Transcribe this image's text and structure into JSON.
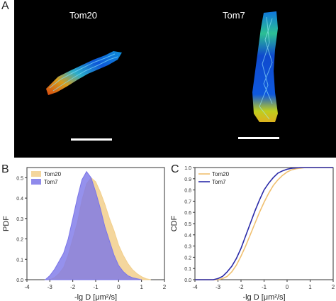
{
  "figure": {
    "panel_a_label": "A",
    "panel_b_label": "B",
    "panel_c_label": "C",
    "microscopy": {
      "left_title": "Tom20",
      "right_title": "Tom7"
    }
  },
  "chart_data": [
    {
      "type": "area",
      "xlabel": "-lg D [μm²/s]",
      "ylabel": "PDF",
      "xlim": [
        -4,
        2
      ],
      "ylim": [
        0,
        0.55
      ],
      "xticks": [
        -4,
        -3,
        -2,
        -1,
        0,
        1,
        2
      ],
      "yticks": [
        0.0,
        0.1,
        0.2,
        0.3,
        0.4,
        0.5
      ],
      "ytick_labels": [
        "0.0",
        "0.1",
        "0.2",
        "0.3",
        "0.4",
        "0.5"
      ],
      "legend": "top-left",
      "series": [
        {
          "name": "Tom20",
          "color": "#f2cf8c",
          "x": [
            -3.0,
            -2.8,
            -2.6,
            -2.4,
            -2.2,
            -2.0,
            -1.8,
            -1.6,
            -1.4,
            -1.2,
            -1.0,
            -0.8,
            -0.6,
            -0.4,
            -0.2,
            0.0,
            0.2,
            0.4,
            0.6,
            0.8,
            1.0,
            1.2,
            1.4
          ],
          "y": [
            0.0,
            0.01,
            0.03,
            0.06,
            0.12,
            0.2,
            0.28,
            0.39,
            0.47,
            0.5,
            0.48,
            0.43,
            0.37,
            0.3,
            0.24,
            0.17,
            0.12,
            0.08,
            0.05,
            0.03,
            0.015,
            0.005,
            0.0
          ]
        },
        {
          "name": "Tom7",
          "color": "#7b75e8",
          "x": [
            -3.2,
            -3.0,
            -2.8,
            -2.6,
            -2.4,
            -2.2,
            -2.0,
            -1.8,
            -1.6,
            -1.4,
            -1.2,
            -1.0,
            -0.8,
            -0.6,
            -0.4,
            -0.2,
            0.0,
            0.2,
            0.4,
            0.6,
            0.8,
            1.0
          ],
          "y": [
            0.0,
            0.02,
            0.05,
            0.09,
            0.13,
            0.2,
            0.3,
            0.4,
            0.49,
            0.53,
            0.5,
            0.43,
            0.35,
            0.26,
            0.19,
            0.12,
            0.07,
            0.04,
            0.02,
            0.01,
            0.005,
            0.0
          ]
        }
      ]
    },
    {
      "type": "line",
      "xlabel": "-lg D [μm²/s]",
      "ylabel": "CDF",
      "xlim": [
        -4,
        2
      ],
      "ylim": [
        0,
        1.0
      ],
      "xticks": [
        -4,
        -3,
        -2,
        -1,
        0,
        1,
        2
      ],
      "yticks": [
        0.0,
        0.1,
        0.2,
        0.3,
        0.4,
        0.5,
        0.6,
        0.7,
        0.8,
        0.9,
        1.0
      ],
      "ytick_labels": [
        "0.0",
        "0.1",
        "0.2",
        "0.3",
        "0.4",
        "0.5",
        "0.6",
        "0.7",
        "0.8",
        "0.9",
        "1.0"
      ],
      "legend": "top-left",
      "series": [
        {
          "name": "Tom20",
          "color": "#f0c070",
          "x": [
            -4.0,
            -3.0,
            -2.8,
            -2.6,
            -2.4,
            -2.2,
            -2.0,
            -1.8,
            -1.6,
            -1.4,
            -1.2,
            -1.0,
            -0.8,
            -0.6,
            -0.4,
            -0.2,
            0.0,
            0.2,
            0.4,
            0.6,
            0.8,
            1.0,
            1.2,
            1.5,
            2.0
          ],
          "y": [
            0.0,
            0.0,
            0.01,
            0.03,
            0.07,
            0.13,
            0.21,
            0.3,
            0.4,
            0.5,
            0.6,
            0.69,
            0.77,
            0.84,
            0.89,
            0.93,
            0.96,
            0.98,
            0.99,
            0.995,
            1.0,
            1.0,
            1.0,
            1.0,
            1.0
          ]
        },
        {
          "name": "Tom7",
          "color": "#2a2aa8",
          "x": [
            -4.0,
            -3.2,
            -3.0,
            -2.8,
            -2.6,
            -2.4,
            -2.2,
            -2.0,
            -1.8,
            -1.6,
            -1.4,
            -1.2,
            -1.0,
            -0.8,
            -0.6,
            -0.4,
            -0.2,
            0.0,
            0.2,
            0.4,
            0.6,
            0.8,
            1.0,
            1.5,
            2.0
          ],
          "y": [
            0.0,
            0.0,
            0.01,
            0.03,
            0.07,
            0.12,
            0.19,
            0.28,
            0.39,
            0.5,
            0.61,
            0.71,
            0.8,
            0.86,
            0.91,
            0.95,
            0.97,
            0.985,
            0.993,
            0.997,
            1.0,
            1.0,
            1.0,
            1.0,
            1.0
          ]
        }
      ]
    }
  ]
}
